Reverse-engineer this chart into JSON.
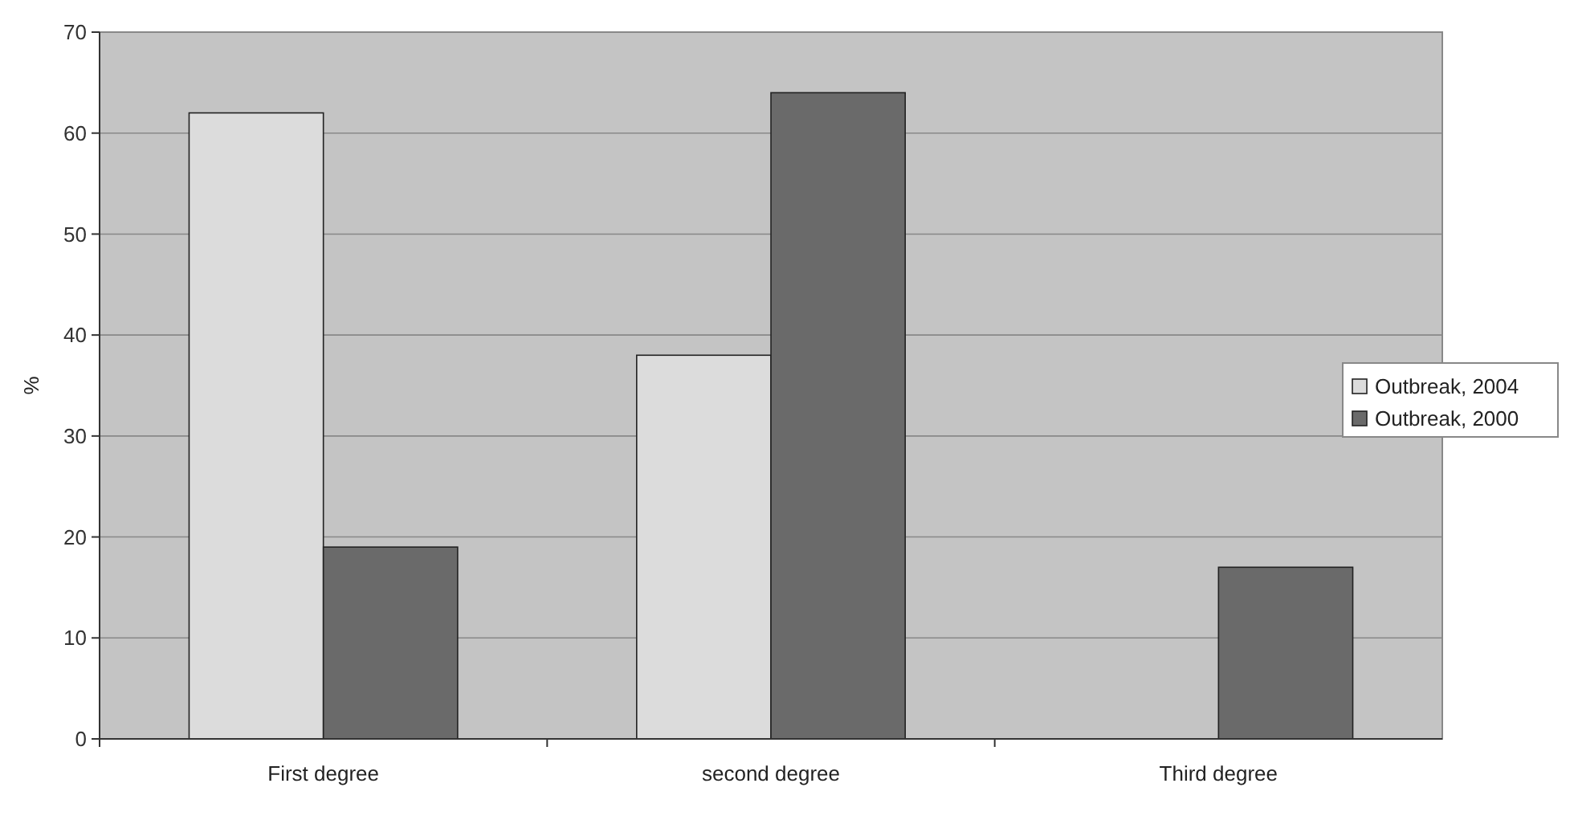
{
  "chart_data": {
    "type": "bar",
    "ylabel": "%",
    "categories": [
      "First degree",
      "second degree",
      "Third degree"
    ],
    "series": [
      {
        "name": "Outbreak, 2004",
        "color": "#dcdcdc",
        "values": [
          62,
          38,
          null
        ]
      },
      {
        "name": "Outbreak, 2000",
        "color": "#6a6a6a",
        "values": [
          19,
          64,
          17
        ]
      }
    ],
    "ylim": [
      0,
      70
    ],
    "yticks": [
      0,
      10,
      20,
      30,
      40,
      50,
      60,
      70
    ],
    "grid": "y",
    "legend": "right"
  }
}
